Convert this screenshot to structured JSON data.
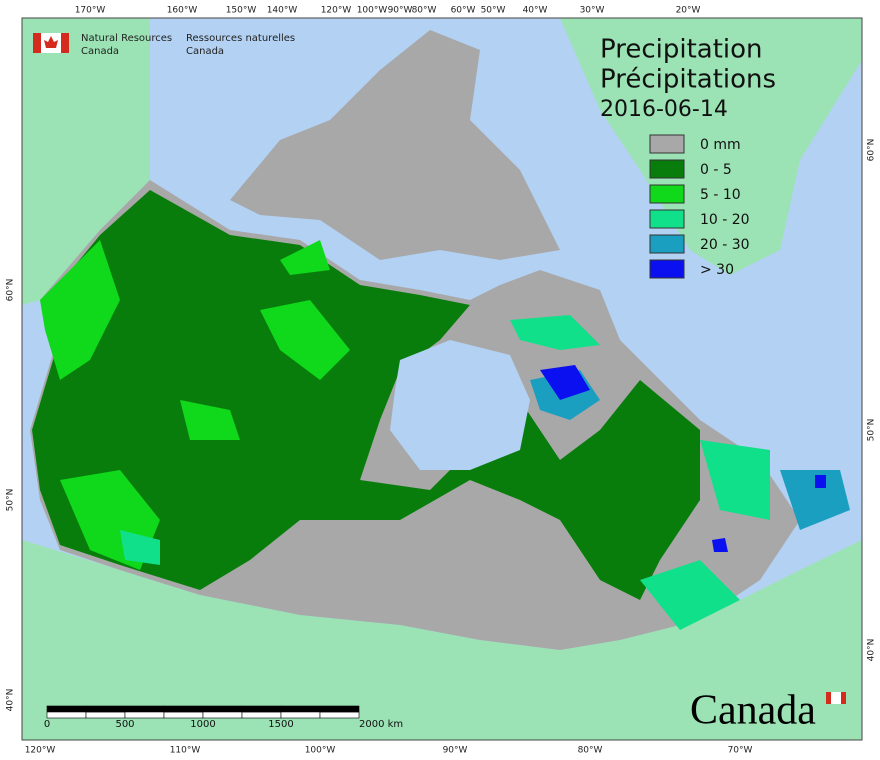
{
  "header": {
    "department_en": [
      "Natural Resources",
      "Canada"
    ],
    "department_fr": [
      "Ressources naturelles",
      "Canada"
    ]
  },
  "title": {
    "en": "Precipitation",
    "fr": "Précipitations",
    "date": "2016-06-14"
  },
  "legend": {
    "items": [
      {
        "label": "0 mm",
        "color": "#a8a8a8"
      },
      {
        "label": "0 - 5",
        "color": "#087d0c"
      },
      {
        "label": "5 - 10",
        "color": "#10d81a"
      },
      {
        "label": "10 - 20",
        "color": "#10e08a"
      },
      {
        "label": "20 - 30",
        "color": "#1a9fc0"
      },
      {
        "label": "> 30",
        "color": "#0a10f0"
      }
    ]
  },
  "graticule": {
    "top": [
      "170°W",
      "160°W",
      "150°W",
      "140°W",
      "120°W",
      "100°W",
      "90°W",
      "80°W",
      "60°W",
      "50°W",
      "40°W",
      "30°W",
      "20°W"
    ],
    "bottom": [
      "120°W",
      "110°W",
      "100°W",
      "90°W",
      "80°W",
      "70°W"
    ],
    "left": [
      "60°N",
      "50°N",
      "40°N"
    ],
    "right": [
      "60°N",
      "50°N",
      "40°N"
    ]
  },
  "scale_bar": {
    "labels": [
      "0",
      "500",
      "1000",
      "1500",
      "2000 km"
    ]
  },
  "wordmark": "Canada"
}
